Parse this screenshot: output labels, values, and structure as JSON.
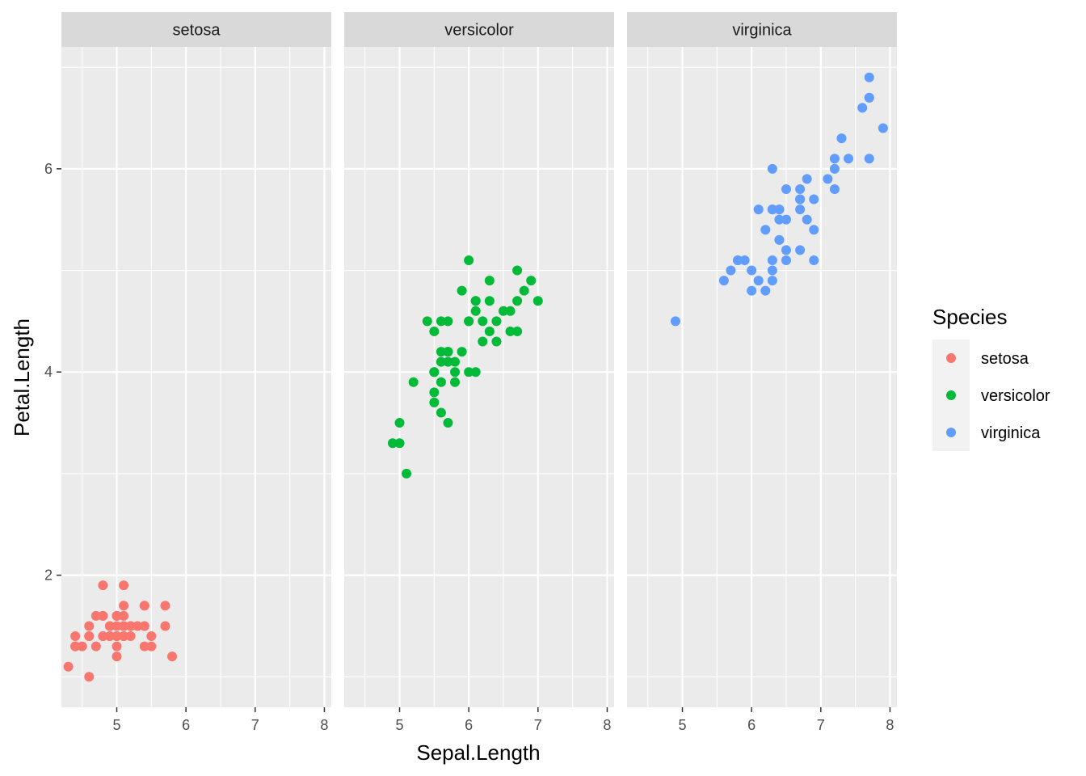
{
  "chart_data": {
    "type": "scatter",
    "facet_by": "Species",
    "xlabel": "Sepal.Length",
    "ylabel": "Petal.Length",
    "xlim": [
      4.2,
      8.1
    ],
    "ylim": [
      0.7,
      7.2
    ],
    "x_ticks": [
      5,
      6,
      7,
      8
    ],
    "y_ticks": [
      2,
      4,
      6
    ],
    "grid": true,
    "legend": {
      "title": "Species",
      "position": "right",
      "entries": [
        {
          "label": "setosa",
          "color": "#F8766D"
        },
        {
          "label": "versicolor",
          "color": "#00BA38"
        },
        {
          "label": "virginica",
          "color": "#619CFF"
        }
      ]
    },
    "panels": [
      {
        "label": "setosa",
        "color": "#F8766D",
        "points": [
          [
            5.1,
            1.4
          ],
          [
            4.9,
            1.4
          ],
          [
            4.7,
            1.3
          ],
          [
            4.6,
            1.5
          ],
          [
            5.0,
            1.4
          ],
          [
            5.4,
            1.7
          ],
          [
            4.6,
            1.4
          ],
          [
            5.0,
            1.5
          ],
          [
            4.4,
            1.4
          ],
          [
            4.9,
            1.5
          ],
          [
            5.4,
            1.5
          ],
          [
            4.8,
            1.6
          ],
          [
            4.8,
            1.4
          ],
          [
            4.3,
            1.1
          ],
          [
            5.8,
            1.2
          ],
          [
            5.7,
            1.5
          ],
          [
            5.4,
            1.3
          ],
          [
            5.1,
            1.4
          ],
          [
            5.7,
            1.7
          ],
          [
            5.1,
            1.5
          ],
          [
            5.4,
            1.7
          ],
          [
            5.1,
            1.5
          ],
          [
            4.6,
            1.0
          ],
          [
            5.1,
            1.7
          ],
          [
            4.8,
            1.9
          ],
          [
            5.0,
            1.6
          ],
          [
            5.0,
            1.6
          ],
          [
            5.2,
            1.5
          ],
          [
            5.2,
            1.4
          ],
          [
            4.7,
            1.6
          ],
          [
            4.8,
            1.6
          ],
          [
            5.4,
            1.5
          ],
          [
            5.2,
            1.5
          ],
          [
            5.5,
            1.4
          ],
          [
            4.9,
            1.5
          ],
          [
            5.0,
            1.2
          ],
          [
            5.5,
            1.3
          ],
          [
            4.9,
            1.4
          ],
          [
            4.4,
            1.3
          ],
          [
            5.1,
            1.5
          ],
          [
            5.0,
            1.3
          ],
          [
            4.5,
            1.3
          ],
          [
            4.4,
            1.3
          ],
          [
            5.0,
            1.6
          ],
          [
            5.1,
            1.9
          ],
          [
            4.8,
            1.4
          ],
          [
            5.1,
            1.6
          ],
          [
            4.6,
            1.4
          ],
          [
            5.3,
            1.5
          ],
          [
            5.0,
            1.4
          ]
        ]
      },
      {
        "label": "versicolor",
        "color": "#00BA38",
        "points": [
          [
            7.0,
            4.7
          ],
          [
            6.4,
            4.5
          ],
          [
            6.9,
            4.9
          ],
          [
            5.5,
            4.0
          ],
          [
            6.5,
            4.6
          ],
          [
            5.7,
            4.5
          ],
          [
            6.3,
            4.7
          ],
          [
            4.9,
            3.3
          ],
          [
            6.6,
            4.6
          ],
          [
            5.2,
            3.9
          ],
          [
            5.0,
            3.5
          ],
          [
            5.9,
            4.2
          ],
          [
            6.0,
            4.0
          ],
          [
            6.1,
            4.7
          ],
          [
            5.6,
            3.6
          ],
          [
            6.7,
            4.4
          ],
          [
            5.6,
            4.5
          ],
          [
            5.8,
            4.1
          ],
          [
            6.2,
            4.5
          ],
          [
            5.6,
            3.9
          ],
          [
            5.9,
            4.8
          ],
          [
            6.1,
            4.0
          ],
          [
            6.3,
            4.9
          ],
          [
            6.1,
            4.7
          ],
          [
            6.4,
            4.3
          ],
          [
            6.6,
            4.4
          ],
          [
            6.8,
            4.8
          ],
          [
            6.7,
            5.0
          ],
          [
            6.0,
            4.5
          ],
          [
            5.7,
            3.5
          ],
          [
            5.5,
            3.8
          ],
          [
            5.5,
            3.7
          ],
          [
            5.8,
            3.9
          ],
          [
            6.0,
            5.1
          ],
          [
            5.4,
            4.5
          ],
          [
            6.0,
            4.5
          ],
          [
            6.7,
            4.7
          ],
          [
            6.3,
            4.4
          ],
          [
            5.6,
            4.1
          ],
          [
            5.5,
            4.0
          ],
          [
            5.5,
            4.4
          ],
          [
            6.1,
            4.6
          ],
          [
            5.8,
            4.0
          ],
          [
            5.0,
            3.3
          ],
          [
            5.6,
            4.2
          ],
          [
            5.7,
            4.2
          ],
          [
            5.7,
            4.2
          ],
          [
            6.2,
            4.3
          ],
          [
            5.1,
            3.0
          ],
          [
            5.7,
            4.1
          ]
        ]
      },
      {
        "label": "virginica",
        "color": "#619CFF",
        "points": [
          [
            6.3,
            6.0
          ],
          [
            5.8,
            5.1
          ],
          [
            7.1,
            5.9
          ],
          [
            6.3,
            5.6
          ],
          [
            6.5,
            5.8
          ],
          [
            7.6,
            6.6
          ],
          [
            4.9,
            4.5
          ],
          [
            7.3,
            6.3
          ],
          [
            6.7,
            5.8
          ],
          [
            7.2,
            6.1
          ],
          [
            6.5,
            5.1
          ],
          [
            6.4,
            5.3
          ],
          [
            6.8,
            5.5
          ],
          [
            5.7,
            5.0
          ],
          [
            5.8,
            5.1
          ],
          [
            6.4,
            5.3
          ],
          [
            6.5,
            5.5
          ],
          [
            7.7,
            6.7
          ],
          [
            7.7,
            6.9
          ],
          [
            6.0,
            5.0
          ],
          [
            6.9,
            5.7
          ],
          [
            5.6,
            4.9
          ],
          [
            7.7,
            6.7
          ],
          [
            6.3,
            4.9
          ],
          [
            6.7,
            5.7
          ],
          [
            7.2,
            6.0
          ],
          [
            6.2,
            4.8
          ],
          [
            6.1,
            4.9
          ],
          [
            6.4,
            5.6
          ],
          [
            7.2,
            5.8
          ],
          [
            7.4,
            6.1
          ],
          [
            7.9,
            6.4
          ],
          [
            6.4,
            5.6
          ],
          [
            6.3,
            5.1
          ],
          [
            6.1,
            5.6
          ],
          [
            7.7,
            6.1
          ],
          [
            6.3,
            5.6
          ],
          [
            6.4,
            5.5
          ],
          [
            6.0,
            4.8
          ],
          [
            6.9,
            5.4
          ],
          [
            6.7,
            5.6
          ],
          [
            6.9,
            5.1
          ],
          [
            5.8,
            5.1
          ],
          [
            6.8,
            5.9
          ],
          [
            6.7,
            5.7
          ],
          [
            6.7,
            5.2
          ],
          [
            6.3,
            5.0
          ],
          [
            6.5,
            5.2
          ],
          [
            6.2,
            5.4
          ],
          [
            5.9,
            5.1
          ]
        ]
      }
    ]
  }
}
